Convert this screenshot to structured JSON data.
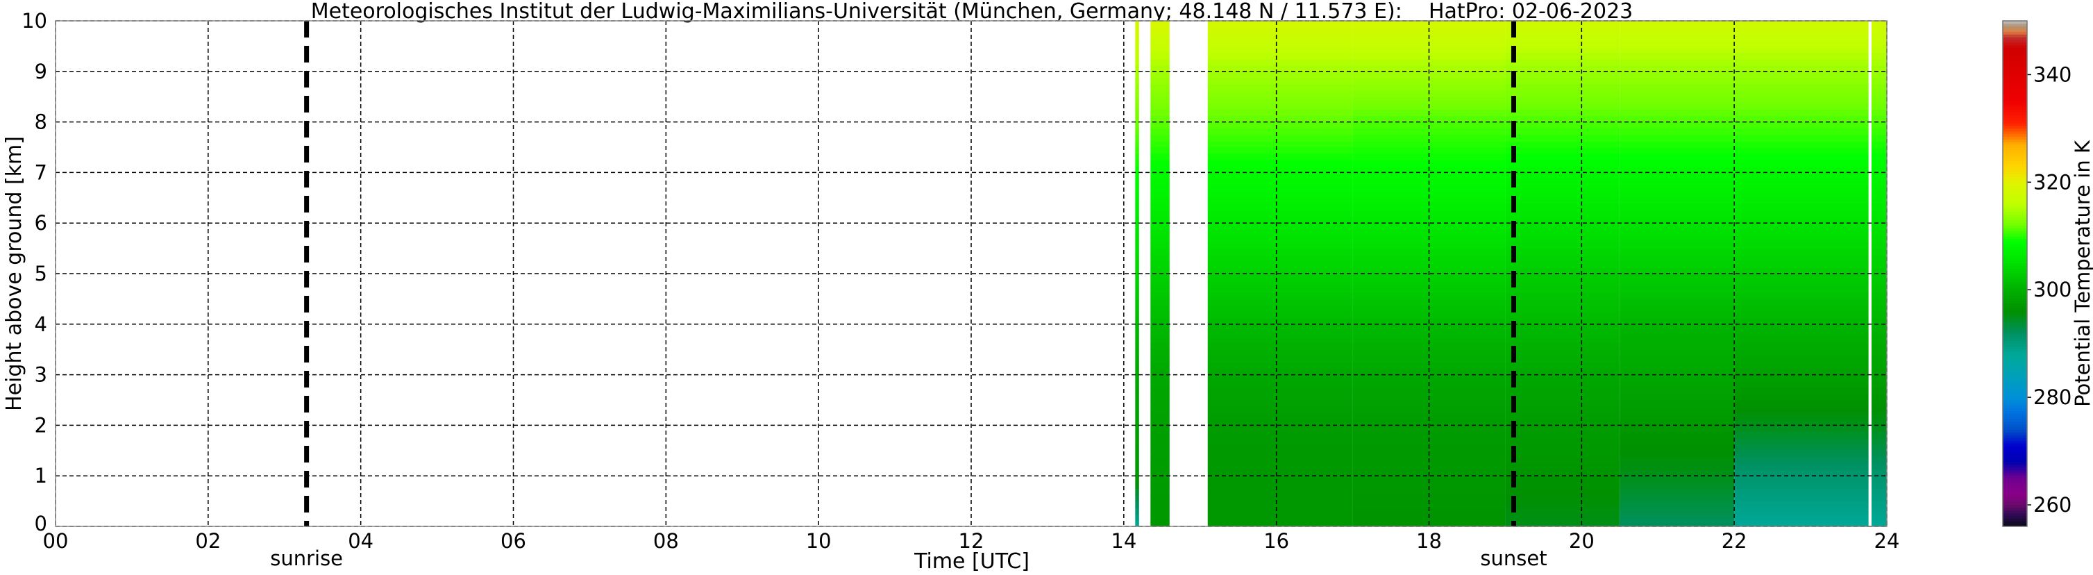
{
  "chart_data": {
    "type": "heatmap",
    "title": "Meteorologisches Institut der Ludwig-Maximilians-Universität (München, Germany; 48.148 N / 11.573 E):    HatPro: 02-06-2023",
    "xlabel": "Time [UTC]",
    "ylabel": "Height above ground [km]",
    "xlim": [
      0,
      24
    ],
    "ylim": [
      0,
      10
    ],
    "x_ticks": [
      "00",
      "02",
      "04",
      "06",
      "08",
      "10",
      "12",
      "14",
      "16",
      "18",
      "20",
      "22",
      "24"
    ],
    "y_ticks": [
      "0",
      "1",
      "2",
      "3",
      "4",
      "5",
      "6",
      "7",
      "8",
      "9",
      "10"
    ],
    "grid": true,
    "events": [
      {
        "label": "sunrise",
        "time": 3.29
      },
      {
        "label": "sunset",
        "time": 19.11
      }
    ],
    "heights_km": [
      0,
      1,
      2,
      3,
      4,
      5,
      6,
      7,
      8,
      9,
      10
    ],
    "columns": [
      {
        "start": 14.15,
        "end": 14.2,
        "theta_K": [
          288,
          297,
          298,
          299,
          301,
          304,
          306,
          309,
          312,
          315,
          319
        ]
      },
      {
        "start": 14.35,
        "end": 14.6,
        "theta_K": [
          297,
          297.5,
          298,
          299,
          301,
          303.5,
          306,
          308.5,
          311.5,
          314.5,
          319
        ]
      },
      {
        "start": 15.1,
        "end": 17,
        "theta_K": [
          297,
          297,
          297.5,
          299,
          301,
          303.5,
          306,
          308.5,
          311.5,
          314.5,
          318.5
        ]
      },
      {
        "start": 17,
        "end": 19,
        "theta_K": [
          296.5,
          297,
          297.5,
          299,
          301,
          303.5,
          306,
          308.5,
          311,
          314.5,
          318.5
        ]
      },
      {
        "start": 19,
        "end": 20.5,
        "theta_K": [
          295,
          296.5,
          297.5,
          299,
          301,
          303,
          305.5,
          308,
          311,
          314,
          318
        ]
      },
      {
        "start": 20.5,
        "end": 22,
        "theta_K": [
          292,
          295,
          297,
          299,
          300.5,
          303,
          305.5,
          308,
          311,
          314,
          318
        ]
      },
      {
        "start": 22,
        "end": 23.76,
        "theta_K": [
          288,
          291,
          295,
          298,
          300.5,
          303,
          305.5,
          308,
          311,
          314,
          318
        ]
      },
      {
        "start": 23.8,
        "end": 24,
        "theta_K": [
          288,
          291,
          295,
          298,
          300.5,
          303,
          305.5,
          308,
          311,
          314,
          318
        ]
      }
    ],
    "colorbar": {
      "label": "Potential Temperature in K",
      "range": [
        256,
        350
      ],
      "ticks": [
        "260",
        "280",
        "300",
        "320",
        "340"
      ],
      "colormap": [
        [
          256,
          "#0a0a14"
        ],
        [
          258,
          "#2a0a50"
        ],
        [
          260,
          "#6a0a6a"
        ],
        [
          262,
          "#880088"
        ],
        [
          265,
          "#700090"
        ],
        [
          268,
          "#0000b0"
        ],
        [
          271,
          "#0000d0"
        ],
        [
          274,
          "#0050c8"
        ],
        [
          277,
          "#0070e0"
        ],
        [
          280,
          "#0090d8"
        ],
        [
          284,
          "#00a0b8"
        ],
        [
          288,
          "#00a898"
        ],
        [
          292,
          "#009060"
        ],
        [
          296,
          "#009000"
        ],
        [
          300,
          "#00b000"
        ],
        [
          305,
          "#00e000"
        ],
        [
          309,
          "#00ff00"
        ],
        [
          312,
          "#70ff00"
        ],
        [
          316,
          "#c0ff00"
        ],
        [
          320,
          "#e0f400"
        ],
        [
          323,
          "#ffd400"
        ],
        [
          327,
          "#ffb000"
        ],
        [
          331,
          "#ff2000"
        ],
        [
          335,
          "#f00000"
        ],
        [
          345,
          "#d00000"
        ],
        [
          347,
          "#c03030"
        ],
        [
          348,
          "#e08040"
        ],
        [
          349,
          "#b09070"
        ],
        [
          350,
          "#c0c0c0"
        ]
      ]
    }
  }
}
